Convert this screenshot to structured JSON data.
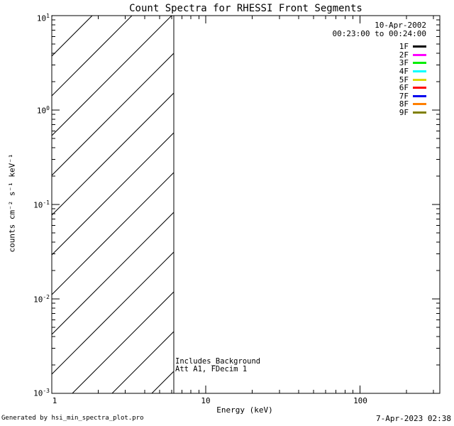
{
  "window": {
    "background": "#ffffff",
    "foreground": "#000000"
  },
  "chart_data": {
    "type": "line",
    "title": "Count Spectra for RHESSI Front Segments",
    "xlabel": "Energy (keV)",
    "ylabel": "counts cm⁻² s⁻¹ keV⁻¹",
    "grid": false,
    "legend_position": "top-right",
    "x_axis": {
      "scale": "log",
      "min": 1,
      "max": 330,
      "ticks": [
        {
          "label": "1",
          "value": 1
        },
        {
          "label": "10",
          "value": 10
        },
        {
          "label": "100",
          "value": 100
        }
      ]
    },
    "y_axis": {
      "scale": "log",
      "min": 0.001,
      "max": 10,
      "ticks": [
        {
          "base": "10",
          "exp": "1",
          "value": 10
        },
        {
          "base": "10",
          "exp": "0",
          "value": 1
        },
        {
          "base": "10",
          "exp": "-1",
          "value": 0.1
        },
        {
          "base": "10",
          "exp": "-2",
          "value": 0.01
        },
        {
          "base": "10",
          "exp": "-3",
          "value": 0.001
        }
      ]
    },
    "observation": {
      "date": "10-Apr-2002",
      "time_range": "00:23:00 to 00:24:00"
    },
    "series": [
      {
        "name": "1F",
        "color": "#000000",
        "data_points": []
      },
      {
        "name": "2F",
        "color": "#ff00ff",
        "data_points": []
      },
      {
        "name": "3F",
        "color": "#00ee00",
        "data_points": []
      },
      {
        "name": "4F",
        "color": "#00ffff",
        "data_points": []
      },
      {
        "name": "5F",
        "color": "#d9d900",
        "data_points": []
      },
      {
        "name": "6F",
        "color": "#ff0000",
        "data_points": []
      },
      {
        "name": "7F",
        "color": "#0000ee",
        "data_points": []
      },
      {
        "name": "8F",
        "color": "#ff7f00",
        "data_points": []
      },
      {
        "name": "9F",
        "color": "#808000",
        "data_points": []
      }
    ],
    "hatch_region": {
      "x_min_kev": 1,
      "x_max_kev": 6.2,
      "style": "diagonal-45deg-hatch",
      "boundary_line": "vertical-full-height"
    },
    "annotations": {
      "line1": "Includes_Background",
      "line2": "Att A1, FDecim 1"
    }
  },
  "footer": {
    "left": "Generated by hsi_min_spectra_plot.pro",
    "right": "7-Apr-2023 02:38"
  }
}
